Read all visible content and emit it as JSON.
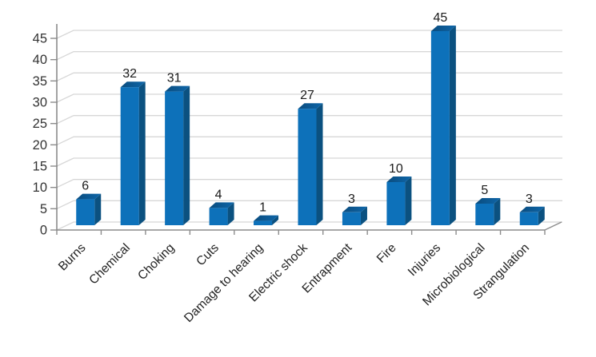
{
  "chart_data": {
    "type": "bar",
    "style": "3d-column",
    "title": "",
    "xlabel": "",
    "ylabel": "",
    "categories": [
      "Burns",
      "Chemical",
      "Choking",
      "Cuts",
      "Damage to hearing",
      "Electric shock",
      "Entrapment",
      "Fire",
      "Injuries",
      "Microbiological",
      "Strangulation"
    ],
    "values": [
      6,
      32,
      31,
      4,
      1,
      27,
      3,
      10,
      45,
      5,
      3
    ],
    "data_labels": [
      "6",
      "32",
      "31",
      "4",
      "1",
      "27",
      "3",
      "10",
      "45",
      "5",
      "3"
    ],
    "ylim": [
      0,
      45
    ],
    "ytick_step": 5,
    "ytick_labels": [
      "0",
      "5",
      "10",
      "15",
      "20",
      "25",
      "30",
      "35",
      "40",
      "45"
    ],
    "xtick_label_rotation_deg": -45,
    "grid": true,
    "legend_position": "none",
    "data_label_position": "above-bar",
    "colors": {
      "background": "#ffffff",
      "bar_front": "#0d71ba",
      "bar_side": "#0b5180",
      "bar_top_dark": "#0a4c7e",
      "bar_top_light": "#0e66a9",
      "gridline": "#d7d7d7",
      "axis_line": "#8c8c8c",
      "tick_label": "#333333",
      "data_label": "#1a1a1a",
      "category_label": "#222222"
    }
  }
}
